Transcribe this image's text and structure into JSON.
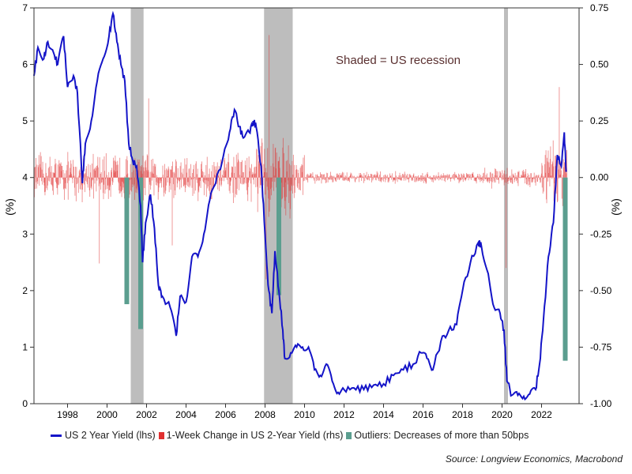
{
  "chart_data": {
    "type": "line",
    "title": "",
    "annotation": "Shaded = US recession",
    "source": "Source: Longview Economics, Macrobond",
    "x_range": [
      1996.3,
      2023.9
    ],
    "x_ticks": [
      "1998",
      "2000",
      "2002",
      "2004",
      "2006",
      "2008",
      "2010",
      "2012",
      "2014",
      "2016",
      "2018",
      "2020",
      "2022"
    ],
    "y_left": {
      "label": "(%)",
      "range": [
        0,
        7
      ],
      "ticks": [
        "0",
        "1",
        "2",
        "3",
        "4",
        "5",
        "6",
        "7"
      ]
    },
    "y_right": {
      "label": "(%)",
      "range": [
        -1.0,
        0.75
      ],
      "ticks": [
        "-1.00",
        "-0.75",
        "-0.50",
        "-0.25",
        "0.00",
        "0.25",
        "0.50",
        "0.75"
      ]
    },
    "recessions": [
      [
        2001.2,
        2001.85
      ],
      [
        2007.95,
        2009.4
      ],
      [
        2020.1,
        2020.3
      ]
    ],
    "series": [
      {
        "name": "US 2 Year Yield (lhs)",
        "axis": "left",
        "color": "#1414c8",
        "points": [
          [
            1996.3,
            5.8
          ],
          [
            1996.5,
            6.3
          ],
          [
            1996.8,
            6.1
          ],
          [
            1997.0,
            6.4
          ],
          [
            1997.3,
            6.2
          ],
          [
            1997.5,
            6.0
          ],
          [
            1997.8,
            6.5
          ],
          [
            1998.0,
            5.6
          ],
          [
            1998.3,
            5.8
          ],
          [
            1998.5,
            5.5
          ],
          [
            1998.75,
            3.9
          ],
          [
            1998.9,
            4.6
          ],
          [
            1999.2,
            5.0
          ],
          [
            1999.5,
            5.7
          ],
          [
            1999.8,
            6.1
          ],
          [
            2000.1,
            6.5
          ],
          [
            2000.3,
            6.9
          ],
          [
            2000.5,
            6.4
          ],
          [
            2000.7,
            6.0
          ],
          [
            2000.9,
            5.7
          ],
          [
            2001.1,
            4.6
          ],
          [
            2001.3,
            4.3
          ],
          [
            2001.5,
            4.2
          ],
          [
            2001.7,
            3.5
          ],
          [
            2001.8,
            2.5
          ],
          [
            2001.95,
            3.2
          ],
          [
            2002.2,
            3.7
          ],
          [
            2002.4,
            3.1
          ],
          [
            2002.6,
            2.1
          ],
          [
            2002.8,
            1.9
          ],
          [
            2003.2,
            1.7
          ],
          [
            2003.5,
            1.2
          ],
          [
            2003.7,
            1.9
          ],
          [
            2004.0,
            1.8
          ],
          [
            2004.3,
            2.6
          ],
          [
            2004.6,
            2.6
          ],
          [
            2004.9,
            3.0
          ],
          [
            2005.2,
            3.6
          ],
          [
            2005.5,
            3.9
          ],
          [
            2005.9,
            4.4
          ],
          [
            2006.2,
            4.8
          ],
          [
            2006.45,
            5.2
          ],
          [
            2006.7,
            4.9
          ],
          [
            2006.9,
            4.7
          ],
          [
            2007.2,
            4.8
          ],
          [
            2007.4,
            5.0
          ],
          [
            2007.55,
            4.9
          ],
          [
            2007.8,
            4.2
          ],
          [
            2008.0,
            3.0
          ],
          [
            2008.15,
            2.1
          ],
          [
            2008.35,
            1.6
          ],
          [
            2008.5,
            2.7
          ],
          [
            2008.7,
            2.0
          ],
          [
            2008.9,
            1.3
          ],
          [
            2009.0,
            0.8
          ],
          [
            2009.3,
            0.9
          ],
          [
            2009.6,
            1.0
          ],
          [
            2009.9,
            1.0
          ],
          [
            2010.2,
            1.0
          ],
          [
            2010.5,
            0.6
          ],
          [
            2010.8,
            0.5
          ],
          [
            2011.1,
            0.7
          ],
          [
            2011.4,
            0.4
          ],
          [
            2011.7,
            0.2
          ],
          [
            2012.0,
            0.25
          ],
          [
            2012.5,
            0.28
          ],
          [
            2013.0,
            0.25
          ],
          [
            2013.5,
            0.33
          ],
          [
            2014.0,
            0.35
          ],
          [
            2014.5,
            0.5
          ],
          [
            2015.0,
            0.6
          ],
          [
            2015.5,
            0.7
          ],
          [
            2015.9,
            0.9
          ],
          [
            2016.2,
            0.8
          ],
          [
            2016.5,
            0.6
          ],
          [
            2016.9,
            1.1
          ],
          [
            2017.3,
            1.3
          ],
          [
            2017.7,
            1.4
          ],
          [
            2018.0,
            2.0
          ],
          [
            2018.4,
            2.5
          ],
          [
            2018.8,
            2.85
          ],
          [
            2018.95,
            2.8
          ],
          [
            2019.3,
            2.3
          ],
          [
            2019.6,
            1.7
          ],
          [
            2019.9,
            1.6
          ],
          [
            2020.1,
            1.3
          ],
          [
            2020.25,
            0.4
          ],
          [
            2020.5,
            0.15
          ],
          [
            2020.8,
            0.15
          ],
          [
            2021.1,
            0.13
          ],
          [
            2021.4,
            0.17
          ],
          [
            2021.7,
            0.25
          ],
          [
            2021.9,
            0.7
          ],
          [
            2022.1,
            1.5
          ],
          [
            2022.35,
            2.6
          ],
          [
            2022.6,
            3.2
          ],
          [
            2022.8,
            4.4
          ],
          [
            2023.0,
            4.2
          ],
          [
            2023.15,
            4.8
          ],
          [
            2023.25,
            4.1
          ]
        ]
      },
      {
        "name": "1-Week Change in US 2-Year Yield (rhs)",
        "axis": "right",
        "color": "#e03030",
        "representation": "weekly bars around 0.00; typical range about ±0.15, spikes up to +0.65 (2008) and down to -0.45 (2008/2020)"
      },
      {
        "name": "Outliers: Decreases of more than 50bps",
        "axis": "right",
        "color": "#5b9e8f",
        "bars": [
          [
            2001.0,
            -0.56
          ],
          [
            2001.7,
            -0.67
          ],
          [
            2008.7,
            -0.52
          ],
          [
            2023.2,
            -0.81
          ]
        ]
      }
    ]
  }
}
